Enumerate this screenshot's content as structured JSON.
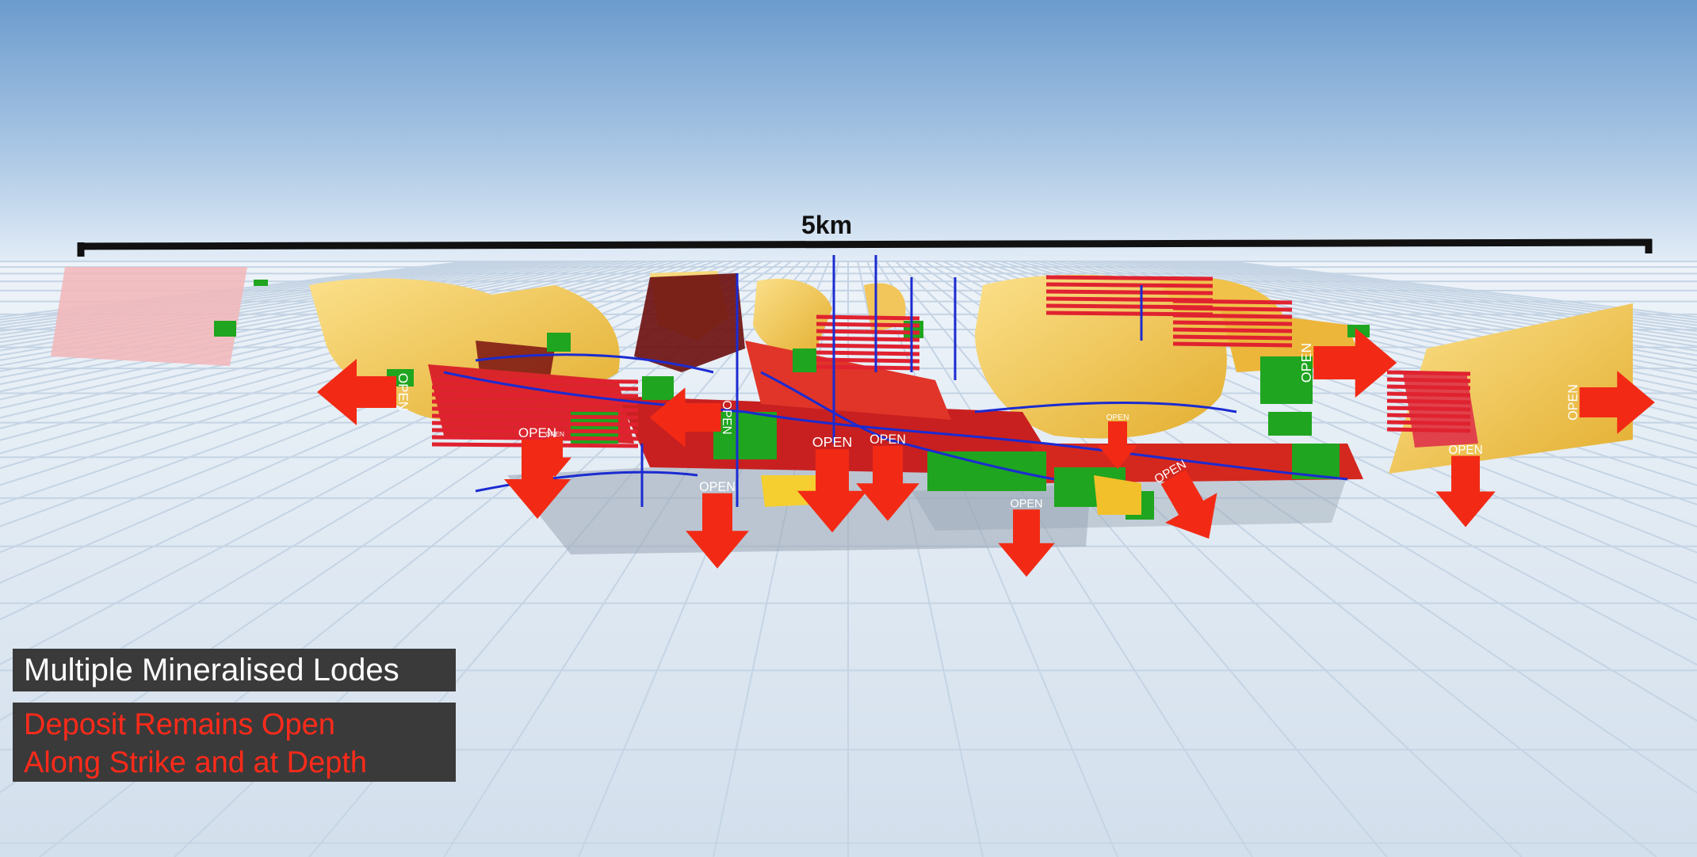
{
  "scale_bar": {
    "label": "5km"
  },
  "arrows": {
    "label": "OPEN",
    "color": "#f22a15",
    "count": 13
  },
  "captions": {
    "title": "Multiple Mineralised Lodes",
    "subtitle_line1": "Deposit Remains Open",
    "subtitle_line2": "Along Strike and at Depth"
  },
  "colors": {
    "sky_top": "#6e9fcf",
    "sky_bottom": "#e3edf7",
    "ground": "#dbe6f1",
    "tile_line": "#c4d2e2",
    "lode_gold": "#f0c24a",
    "lode_red": "#d9262a",
    "lode_green": "#1fa51f",
    "drill_blue": "#1b2bd1",
    "dark_red": "#6b0d0d",
    "caption_bg": "#3a3a3a",
    "caption_red": "#ff2a1a"
  }
}
